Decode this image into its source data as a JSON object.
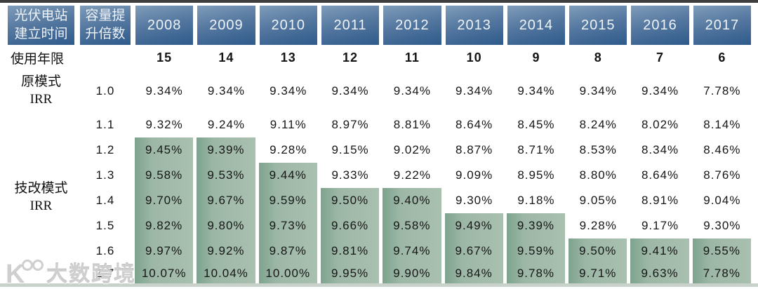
{
  "chart_data": {
    "type": "table",
    "header": {
      "station_line1": "光伏电站",
      "station_line2": "建立时间",
      "capacity_line1": "容量提",
      "capacity_line2": "升倍数",
      "years": [
        "2008",
        "2009",
        "2010",
        "2011",
        "2012",
        "2013",
        "2014",
        "2015",
        "2016",
        "2017"
      ]
    },
    "lifetime": {
      "label": "使用年限",
      "values": [
        "15",
        "14",
        "13",
        "12",
        "11",
        "10",
        "9",
        "8",
        "7",
        "6"
      ]
    },
    "original_irr": {
      "label_line1": "原模式",
      "label_line2": "IRR",
      "multiplier": "1.0",
      "values": [
        "9.34%",
        "9.34%",
        "9.34%",
        "9.34%",
        "9.34%",
        "9.34%",
        "9.34%",
        "9.34%",
        "9.34%",
        "7.78%"
      ]
    },
    "upgrade_irr": {
      "label_line1": "技改模式",
      "label_line2": "IRR",
      "rows": [
        {
          "multiplier": "1.1",
          "highlight_through": -1,
          "values": [
            "9.32%",
            "9.24%",
            "9.11%",
            "8.97%",
            "8.81%",
            "8.64%",
            "8.45%",
            "8.24%",
            "8.02%",
            "8.14%"
          ]
        },
        {
          "multiplier": "1.2",
          "highlight_through": 1,
          "values": [
            "9.45%",
            "9.39%",
            "9.28%",
            "9.15%",
            "9.02%",
            "8.87%",
            "8.71%",
            "8.53%",
            "8.34%",
            "8.46%"
          ]
        },
        {
          "multiplier": "1.3",
          "highlight_through": 2,
          "values": [
            "9.58%",
            "9.53%",
            "9.44%",
            "9.33%",
            "9.22%",
            "9.09%",
            "8.95%",
            "8.80%",
            "8.64%",
            "8.76%"
          ]
        },
        {
          "multiplier": "1.4",
          "highlight_through": 4,
          "values": [
            "9.70%",
            "9.67%",
            "9.59%",
            "9.50%",
            "9.40%",
            "9.30%",
            "9.18%",
            "9.05%",
            "8.91%",
            "9.04%"
          ]
        },
        {
          "multiplier": "1.5",
          "highlight_through": 6,
          "values": [
            "9.82%",
            "9.80%",
            "9.73%",
            "9.66%",
            "9.58%",
            "9.49%",
            "9.39%",
            "9.28%",
            "9.17%",
            "9.30%"
          ]
        },
        {
          "multiplier": "1.6",
          "highlight_through": 9,
          "values": [
            "9.97%",
            "9.92%",
            "9.87%",
            "9.81%",
            "9.74%",
            "9.67%",
            "9.59%",
            "9.50%",
            "9.41%",
            "9.55%"
          ]
        },
        {
          "multiplier": "1.7",
          "highlight_through": 9,
          "values": [
            "10.07%",
            "10.04%",
            "10.00%",
            "9.95%",
            "9.90%",
            "9.84%",
            "9.78%",
            "9.71%",
            "9.63%",
            "7.78%"
          ]
        }
      ]
    }
  },
  "watermark": {
    "logo": "K100-logo",
    "text": "大数跨境"
  },
  "colors": {
    "header_blue_light": "#7f9cba",
    "header_blue_mid": "#54779f",
    "header_blue_dark": "#2e5a8b",
    "highlight_green_dark": "#7da38d",
    "highlight_green_light": "#a9c0b0",
    "top_line": "#3e3e3e",
    "bottom_line": "#c8d1ca"
  }
}
